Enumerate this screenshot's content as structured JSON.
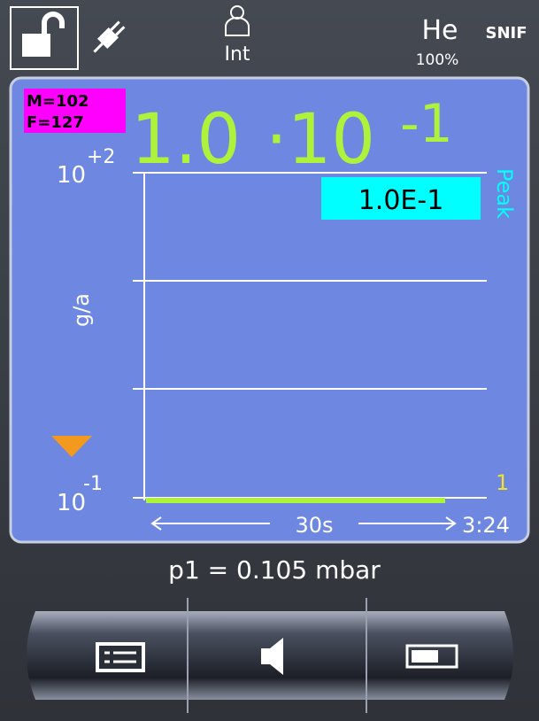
{
  "status_bar": {
    "signal": "Int",
    "gas": "He",
    "gas_level": "100%",
    "mode": "SNIF"
  },
  "display": {
    "mass_label": "M=102",
    "filter_label": "F=127",
    "reading": {
      "mantissa": "1.0",
      "base": "·10",
      "exponent": "-1"
    },
    "axis": {
      "top_base": "10",
      "top_exponent": "+2",
      "bottom_base": "10",
      "bottom_exponent": "-1",
      "unit": "g/a"
    },
    "peak_value": "1.0E-1",
    "peak_label": "Peak",
    "range_marker": "1",
    "time_span": "30s",
    "time_end": "3:24"
  },
  "pressure": "p1 = 0.105 mbar"
}
